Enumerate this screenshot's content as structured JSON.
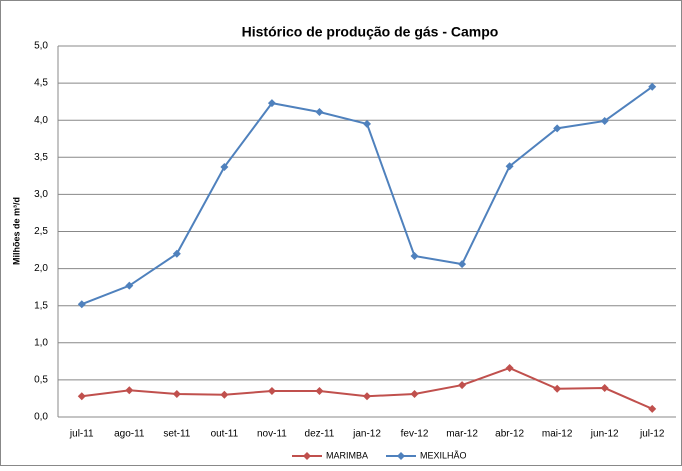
{
  "chart_data": {
    "type": "line",
    "title": "Histórico de produção de gás - Campo",
    "y_label": "Milhões de m³/d",
    "categories": [
      "jul-11",
      "ago-11",
      "set-11",
      "out-11",
      "nov-11",
      "dez-11",
      "jan-12",
      "fev-12",
      "mar-12",
      "abr-12",
      "mai-12",
      "jun-12",
      "jul-12"
    ],
    "series": [
      {
        "name": "MARIMBA",
        "color": "#c0504d",
        "values": [
          0.28,
          0.36,
          0.31,
          0.3,
          0.35,
          0.35,
          0.28,
          0.31,
          0.43,
          0.66,
          0.38,
          0.39,
          0.11
        ]
      },
      {
        "name": "MEXILHÃO",
        "color": "#4f81bd",
        "values": [
          1.52,
          1.77,
          2.2,
          3.37,
          4.23,
          4.11,
          3.95,
          2.17,
          2.06,
          3.38,
          3.89,
          3.99,
          4.45
        ]
      }
    ],
    "ylim": [
      0,
      5
    ],
    "yticks": [
      {
        "value": 0,
        "label": "0,0"
      },
      {
        "value": 0.5,
        "label": "0,5"
      },
      {
        "value": 1,
        "label": "1,0"
      },
      {
        "value": 1.5,
        "label": "1,5"
      },
      {
        "value": 2,
        "label": "2,0"
      },
      {
        "value": 2.5,
        "label": "2,5"
      },
      {
        "value": 3,
        "label": "3,0"
      },
      {
        "value": 3.5,
        "label": "3,5"
      },
      {
        "value": 4,
        "label": "4,0"
      },
      {
        "value": 4.5,
        "label": "4,5"
      },
      {
        "value": 5,
        "label": "5,0"
      }
    ],
    "grid": true,
    "legend": "bottom"
  }
}
